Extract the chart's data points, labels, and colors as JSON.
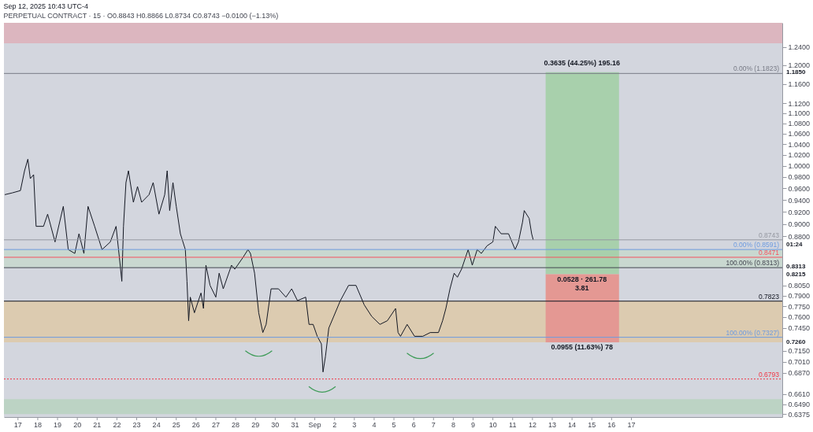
{
  "chart_data": {
    "type": "line",
    "title": "Sep 12, 2025 10:43 UTC-4",
    "subtitle": "PERPETUAL CONTRACT · 15 · O0.8843 H0.8866 L0.8734 C0.8743 −0.0100 (−1.13%)",
    "series": [
      {
        "color": "#131722",
        "x": [
          "2025-08-16T08:00",
          "2025-08-16T17:00",
          "2025-08-17T03:00",
          "2025-08-17T08:00",
          "2025-08-17T12:00",
          "2025-08-17T15:00",
          "2025-08-17T19:00",
          "2025-08-17T22:00",
          "2025-08-18T07:00",
          "2025-08-18T12:00",
          "2025-08-18T21:00",
          "2025-08-19T07:00",
          "2025-08-19T13:00",
          "2025-08-19T21:00",
          "2025-08-20T02:00",
          "2025-08-20T08:00",
          "2025-08-20T13:00",
          "2025-08-20T21:00",
          "2025-08-21T06:00",
          "2025-08-21T16:00",
          "2025-08-21T23:00",
          "2025-08-22T04:00",
          "2025-08-22T06:00",
          "2025-08-22T08:00",
          "2025-08-22T11:00",
          "2025-08-22T14:00",
          "2025-08-22T20:00",
          "2025-08-23T01:00",
          "2025-08-23T06:00",
          "2025-08-23T15:00",
          "2025-08-23T20:00",
          "2025-08-24T03:00",
          "2025-08-24T10:00",
          "2025-08-24T13:00",
          "2025-08-24T16:00",
          "2025-08-24T20:00",
          "2025-08-25T00:00",
          "2025-08-25T05:00",
          "2025-08-25T11:00",
          "2025-08-25T13:00",
          "2025-08-25T15:00",
          "2025-08-25T17:00",
          "2025-08-25T22:00",
          "2025-08-26T06:00",
          "2025-08-26T09:00",
          "2025-08-26T12:00",
          "2025-08-26T17:00",
          "2025-08-27T00:00",
          "2025-08-27T04:00",
          "2025-08-27T09:00",
          "2025-08-27T19:00",
          "2025-08-27T23:00",
          "2025-08-28T09:00",
          "2025-08-28T15:00",
          "2025-08-28T18:00",
          "2025-08-28T23:00",
          "2025-08-29T04:00",
          "2025-08-29T09:00",
          "2025-08-29T13:00",
          "2025-08-29T19:00",
          "2025-08-30T04:00",
          "2025-08-30T13:00",
          "2025-08-30T20:00",
          "2025-08-31T03:00",
          "2025-08-31T13:00",
          "2025-08-31T17:00",
          "2025-08-31T22:00",
          "2025-09-01T03:00",
          "2025-09-01T08:00",
          "2025-09-01T10:00",
          "2025-09-01T13:00",
          "2025-09-01T17:00",
          "2025-09-01T23:00",
          "2025-09-02T07:00",
          "2025-09-02T17:00",
          "2025-09-03T02:00",
          "2025-09-03T12:00",
          "2025-09-03T21:00",
          "2025-09-04T07:00",
          "2025-09-04T16:00",
          "2025-09-05T02:00",
          "2025-09-05T05:00",
          "2025-09-05T08:00",
          "2025-09-05T16:00",
          "2025-09-06T01:00",
          "2025-09-06T11:00",
          "2025-09-06T20:00",
          "2025-09-07T06:00",
          "2025-09-07T11:00",
          "2025-09-07T15:00",
          "2025-09-07T20:00",
          "2025-09-08T01:00",
          "2025-09-08T05:00",
          "2025-09-08T10:00",
          "2025-09-08T18:00",
          "2025-09-08T23:00",
          "2025-09-09T05:00",
          "2025-09-09T10:00",
          "2025-09-09T17:00",
          "2025-09-10T00:00",
          "2025-09-10T03:00",
          "2025-09-10T10:00",
          "2025-09-10T19:00",
          "2025-09-11T03:00",
          "2025-09-11T07:00",
          "2025-09-11T12:00",
          "2025-09-11T14:00",
          "2025-09-11T20:00",
          "2025-09-11T23:00",
          "2025-09-12T01:00"
        ],
        "values": [
          0.949,
          0.952,
          0.956,
          0.991,
          1.012,
          0.977,
          0.984,
          0.896,
          0.896,
          0.916,
          0.871,
          0.929,
          0.859,
          0.853,
          0.884,
          0.853,
          0.929,
          0.896,
          0.859,
          0.871,
          0.896,
          0.835,
          0.811,
          0.896,
          0.97,
          0.991,
          0.936,
          0.963,
          0.936,
          0.949,
          0.97,
          0.916,
          0.949,
          0.991,
          0.922,
          0.97,
          0.929,
          0.884,
          0.859,
          0.811,
          0.755,
          0.788,
          0.766,
          0.794,
          0.772,
          0.835,
          0.805,
          0.788,
          0.823,
          0.8,
          0.835,
          0.829,
          0.847,
          0.859,
          0.853,
          0.823,
          0.766,
          0.739,
          0.75,
          0.8,
          0.8,
          0.788,
          0.8,
          0.783,
          0.788,
          0.75,
          0.75,
          0.734,
          0.724,
          0.688,
          0.708,
          0.745,
          0.761,
          0.783,
          0.805,
          0.805,
          0.777,
          0.761,
          0.75,
          0.755,
          0.772,
          0.739,
          0.734,
          0.75,
          0.734,
          0.734,
          0.739,
          0.739,
          0.755,
          0.772,
          0.8,
          0.823,
          0.817,
          0.829,
          0.859,
          0.835,
          0.859,
          0.853,
          0.865,
          0.871,
          0.896,
          0.884,
          0.884,
          0.859,
          0.871,
          0.903,
          0.922,
          0.909,
          0.884,
          0.874
        ]
      }
    ],
    "log": "y",
    "xlim": [
      "2025-08-16T07:00",
      "2025-09-24T15:00"
    ],
    "ylim": [
      0.634,
      1.296
    ],
    "xticks": [
      {
        "value": "2025-08-17",
        "label": "17"
      },
      {
        "value": "2025-08-18",
        "label": "18"
      },
      {
        "value": "2025-08-19",
        "label": "19"
      },
      {
        "value": "2025-08-20",
        "label": "20"
      },
      {
        "value": "2025-08-21",
        "label": "21"
      },
      {
        "value": "2025-08-22",
        "label": "22"
      },
      {
        "value": "2025-08-23",
        "label": "23"
      },
      {
        "value": "2025-08-24",
        "label": "24"
      },
      {
        "value": "2025-08-25",
        "label": "25"
      },
      {
        "value": "2025-08-26",
        "label": "26"
      },
      {
        "value": "2025-08-27",
        "label": "27"
      },
      {
        "value": "2025-08-28",
        "label": "28"
      },
      {
        "value": "2025-08-29",
        "label": "29"
      },
      {
        "value": "2025-08-30",
        "label": "30"
      },
      {
        "value": "2025-08-31",
        "label": "31"
      },
      {
        "value": "2025-09-01",
        "label": "Sep"
      },
      {
        "value": "2025-09-02",
        "label": "2"
      },
      {
        "value": "2025-09-03",
        "label": "3"
      },
      {
        "value": "2025-09-04",
        "label": "4"
      },
      {
        "value": "2025-09-05",
        "label": "5"
      },
      {
        "value": "2025-09-06",
        "label": "6"
      },
      {
        "value": "2025-09-07",
        "label": "7"
      },
      {
        "value": "2025-09-08",
        "label": "8"
      },
      {
        "value": "2025-09-09",
        "label": "9"
      },
      {
        "value": "2025-09-10",
        "label": "10"
      },
      {
        "value": "2025-09-11",
        "label": "11"
      },
      {
        "value": "2025-09-12",
        "label": "12"
      },
      {
        "value": "2025-09-13",
        "label": "13"
      },
      {
        "value": "2025-09-14",
        "label": "14"
      },
      {
        "value": "2025-09-15",
        "label": "15"
      },
      {
        "value": "2025-09-16",
        "label": "16"
      },
      {
        "value": "2025-09-17",
        "label": "17"
      }
    ],
    "yticks": [
      {
        "value": 1.24,
        "label": "1.2400"
      },
      {
        "value": 1.2,
        "label": "1.2000"
      },
      {
        "value": 1.16,
        "label": "1.1600"
      },
      {
        "value": 1.12,
        "label": "1.1200"
      },
      {
        "value": 1.1,
        "label": "1.1000"
      },
      {
        "value": 1.08,
        "label": "1.0800"
      },
      {
        "value": 1.06,
        "label": "1.0600"
      },
      {
        "value": 1.04,
        "label": "1.0400"
      },
      {
        "value": 1.02,
        "label": "1.0200"
      },
      {
        "value": 1.0,
        "label": "1.0000"
      },
      {
        "value": 0.98,
        "label": "0.9800"
      },
      {
        "value": 0.96,
        "label": "0.9600"
      },
      {
        "value": 0.94,
        "label": "0.9400"
      },
      {
        "value": 0.92,
        "label": "0.9200"
      },
      {
        "value": 0.9,
        "label": "0.9000"
      },
      {
        "value": 0.88,
        "label": "0.8800"
      },
      {
        "value": 0.805,
        "label": "0.8050"
      },
      {
        "value": 0.79,
        "label": "0.7900"
      },
      {
        "value": 0.775,
        "label": "0.7750"
      },
      {
        "value": 0.76,
        "label": "0.7600"
      },
      {
        "value": 0.745,
        "label": "0.7450"
      },
      {
        "value": 0.715,
        "label": "0.7150"
      },
      {
        "value": 0.701,
        "label": "0.7010"
      },
      {
        "value": 0.687,
        "label": "0.6870"
      },
      {
        "value": 0.661,
        "label": "0.6610"
      },
      {
        "value": 0.649,
        "label": "0.6490"
      },
      {
        "value": 0.6375,
        "label": "0.6375"
      }
    ],
    "bands": [
      {
        "axis": "y",
        "from": 1.249,
        "to": 1.296,
        "color": "#dcb6bf"
      },
      {
        "axis": "y",
        "from": 0.6375,
        "to": 0.655,
        "color": "#bcd3c4"
      },
      {
        "axis": "y",
        "from": 0.726,
        "to": 0.7823,
        "color": "#dccbb0"
      },
      {
        "axis": "y",
        "from": 0.8313,
        "to": 0.8591,
        "color": "#c9d8d0"
      }
    ],
    "ref_lines": [
      {
        "axis": "y",
        "value": 1.1823,
        "label": "0.00% (1.1823)",
        "color": "#787b86"
      },
      {
        "axis": "y",
        "value": 0.8743,
        "label": "0.8743",
        "color": "#9598a1"
      },
      {
        "axis": "y",
        "value": 0.8591,
        "label": "0.00% (0.8591)",
        "color": "#6d9be0"
      },
      {
        "axis": "y",
        "value": 0.8471,
        "label": "0.8471",
        "color": "#f7525f"
      },
      {
        "axis": "y",
        "value": 0.8313,
        "label": "100.00% (0.8313)",
        "color": "#434651"
      },
      {
        "axis": "y",
        "value": 0.7823,
        "label": "0.7823",
        "color": "#131722"
      },
      {
        "axis": "y",
        "value": 0.7327,
        "label": "100.00% (0.7327)",
        "color": "#6d9be0"
      },
      {
        "axis": "y",
        "value": 0.6793,
        "label": "0.6793",
        "color": "#f23645",
        "line_style": "dotted"
      }
    ],
    "annotations": [
      "0.3635 (44.25%) 195.16",
      "0.0528 · 261.78\n3.81",
      "0.0955 (11.63%) 78",
      "1.1850",
      "01:24",
      "0.8313",
      "0.8215",
      "0.7260"
    ]
  }
}
